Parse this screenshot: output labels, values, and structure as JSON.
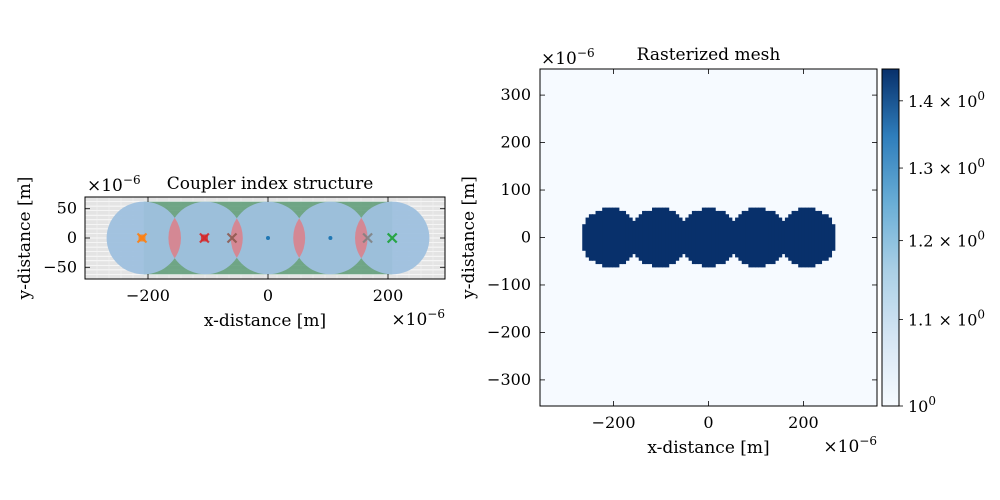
{
  "colors": {
    "circle_fill": "#9ec0de",
    "gap_fill": "#5a9a74",
    "overlap_fill": "#d9828c",
    "grid_bg": "#e4e4e4",
    "mesh_bg": "#f6faff",
    "mesh_fg": "#08306b",
    "markers": [
      "#ff7f0e",
      "#d62728",
      "#8c564b",
      "#1f77b4",
      "#7f7f7f",
      "#17becf"
    ]
  },
  "chart_data": [
    {
      "type": "scatter",
      "title": "Coupler index structure",
      "xlabel": "x-distance [m]",
      "ylabel": "y-distance [m]",
      "xlim": [
        -305,
        295
      ],
      "ylim": [
        -70,
        70
      ],
      "x_ticks": [
        -200,
        0,
        200
      ],
      "y_ticks": [
        -50,
        0,
        50
      ],
      "x_tick_labels": [
        "−200",
        "0",
        "200"
      ],
      "y_tick_labels": [
        "−50",
        "0",
        "50"
      ],
      "x_multiplier": "×10",
      "y_multiplier": "×10",
      "multiplier_exponent": "−6",
      "grid": true,
      "circles": [
        {
          "cx": -207,
          "cy": 0,
          "r": 62
        },
        {
          "cx": -104,
          "cy": 0,
          "r": 62
        },
        {
          "cx": 0,
          "cy": 0,
          "r": 62
        },
        {
          "cx": 104,
          "cy": 0,
          "r": 62
        },
        {
          "cx": 207,
          "cy": 0,
          "r": 62
        }
      ],
      "centers": [
        {
          "x": -210,
          "y": 0,
          "marker": "x",
          "color": "#ff7f0e"
        },
        {
          "x": -210,
          "y": 0,
          "marker": "square",
          "color": "#ff7f0e"
        },
        {
          "x": -106,
          "y": 0,
          "marker": "x",
          "color": "#d62728"
        },
        {
          "x": -106,
          "y": 0,
          "marker": "square",
          "color": "#d62728"
        },
        {
          "x": -60,
          "y": 0,
          "marker": "x",
          "color": "#8c564b"
        },
        {
          "x": 0,
          "y": 0,
          "marker": "dot",
          "color": "#1f77b4"
        },
        {
          "x": 104,
          "y": 0,
          "marker": "dot",
          "color": "#1f77b4"
        },
        {
          "x": 166,
          "y": 0,
          "marker": "x",
          "color": "#7f7f7f"
        },
        {
          "x": 207,
          "y": 0,
          "marker": "x",
          "color": "#17becf"
        },
        {
          "x": 207,
          "y": 0,
          "marker": "x",
          "color": "#2ca02c"
        }
      ]
    },
    {
      "type": "heatmap",
      "title": "Rasterized mesh",
      "xlabel": "x-distance [m]",
      "ylabel": "y-distance [m]",
      "xlim": [
        -355,
        355
      ],
      "ylim": [
        -355,
        355
      ],
      "x_ticks": [
        -200,
        0,
        200
      ],
      "y_ticks": [
        300,
        200,
        100,
        0,
        -100,
        -200,
        -300
      ],
      "x_tick_labels": [
        "−200",
        "0",
        "200"
      ],
      "y_tick_labels": [
        "300",
        "200",
        "100",
        "0",
        "−100",
        "−200",
        "−300"
      ],
      "x_multiplier": "×10",
      "y_multiplier": "×10",
      "multiplier_exponent": "−6",
      "background_value": 1.0,
      "structure_value": 1.45,
      "structure_circles": [
        {
          "cx": -207,
          "cy": 0,
          "r": 62
        },
        {
          "cx": -104,
          "cy": 0,
          "r": 62
        },
        {
          "cx": 0,
          "cy": 0,
          "r": 62
        },
        {
          "cx": 104,
          "cy": 0,
          "r": 62
        },
        {
          "cx": 207,
          "cy": 0,
          "r": 62
        }
      ],
      "colorbar": {
        "scale": "log",
        "range": [
          1.0,
          1.45
        ],
        "tick_values": [
          1.0,
          1.1,
          1.2,
          1.3,
          1.4
        ],
        "tick_mantissas": [
          "",
          "1.1",
          "1.2",
          "1.3",
          "1.4"
        ],
        "tick_base": "10",
        "tick_exponent": "0",
        "cmap": "Blues"
      }
    }
  ]
}
